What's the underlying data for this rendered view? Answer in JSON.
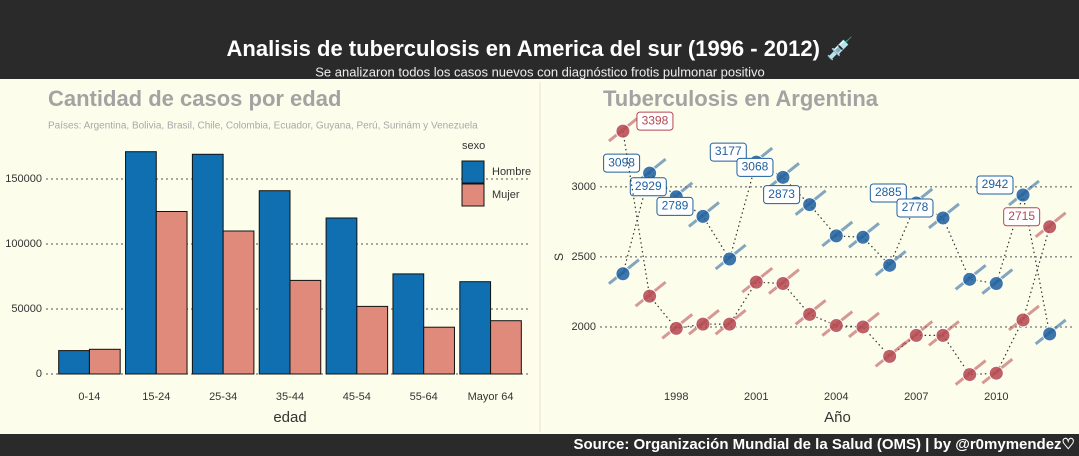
{
  "header": {
    "title": "Analisis de tuberculosis en America del sur (1996 - 2012) 💉",
    "subtitle": "Se analizaron todos los casos nuevos con diagnóstico frotis pulmonar positivo"
  },
  "chart_data": [
    {
      "type": "bar",
      "title": "Cantidad de casos por edad",
      "subtitle": "Países: Argentina, Bolivia, Brasil, Chile, Colombia, Ecuador, Guyana, Perú, Surinám y Venezuela",
      "categories": [
        "0-14",
        "15-24",
        "25-34",
        "35-44",
        "45-54",
        "55-64",
        "Mayor 64"
      ],
      "series": [
        {
          "name": "Hombre",
          "color": "#0f6fb1",
          "values": [
            18000,
            171000,
            169000,
            141000,
            120000,
            77000,
            71000
          ]
        },
        {
          "name": "Mujer",
          "color": "#e08a7c",
          "values": [
            19000,
            125000,
            110000,
            72000,
            52000,
            36000,
            41000
          ]
        }
      ],
      "legend_title": "sexo",
      "legend": "right",
      "x_label": "edad",
      "ylim": [
        0,
        180000
      ],
      "yticks": [
        0,
        50000,
        100000,
        150000
      ],
      "grid": true
    },
    {
      "type": "line",
      "title": "Tuberculosis en Argentina",
      "x": [
        1996,
        1997,
        1998,
        1999,
        2000,
        2001,
        2002,
        2003,
        2004,
        2005,
        2006,
        2007,
        2008,
        2009,
        2010,
        2011,
        2012
      ],
      "series": [
        {
          "color": "#1f5f9e",
          "values": [
            2380,
            3098,
            2929,
            2789,
            2485,
            3177,
            3068,
            2873,
            2650,
            2640,
            2440,
            2885,
            2778,
            2340,
            2310,
            2942,
            1950
          ],
          "value_labels": [
            null,
            "3098",
            "2929",
            "2789",
            null,
            "3177",
            "3068",
            "2873",
            null,
            null,
            null,
            "2885",
            "2778",
            null,
            null,
            "2942",
            null
          ]
        },
        {
          "color": "#b5474f",
          "values": [
            3398,
            2220,
            1990,
            2020,
            2020,
            2320,
            2310,
            2090,
            2010,
            2000,
            1790,
            1940,
            1940,
            1660,
            1670,
            2050,
            2715
          ],
          "value_labels": [
            "3398",
            null,
            null,
            null,
            null,
            null,
            null,
            null,
            null,
            null,
            null,
            null,
            null,
            null,
            null,
            null,
            "2715"
          ]
        }
      ],
      "x_label": "Año",
      "y_label": "S",
      "xlim": [
        1995.14,
        2012.95
      ],
      "xticks": [
        1998,
        2001,
        2004,
        2007,
        2010
      ],
      "ylim": [
        1550,
        3620
      ],
      "yticks": [
        2000,
        2500,
        3000
      ],
      "grid": true
    }
  ],
  "footer": {
    "source": "Source: Organización Mundial de la Salud (OMS) | by @r0mymendez♡"
  }
}
